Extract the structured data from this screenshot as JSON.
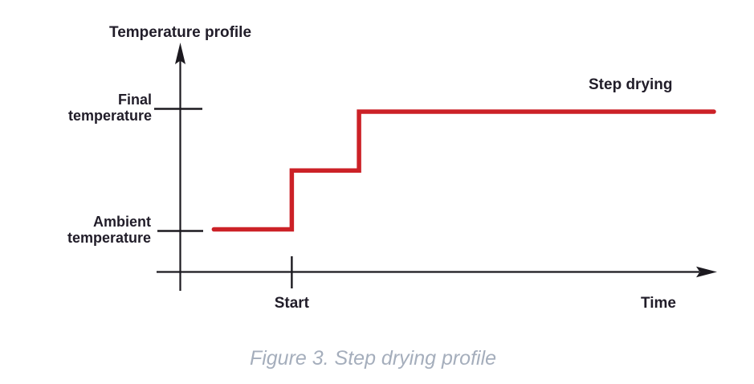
{
  "figure": {
    "title": "Temperature profile",
    "series_label": "Step drying",
    "y_axis_labels": {
      "final": [
        "Final",
        "temperature"
      ],
      "ambient": [
        "Ambient",
        "temperature"
      ]
    },
    "x_axis_labels": {
      "start": "Start",
      "time": "Time"
    },
    "caption": "Figure 3. Step drying profile"
  },
  "colors": {
    "line": "#cc2127",
    "axis": "#1b191f",
    "text": "#211d29",
    "caption": "#a5aebc"
  },
  "chart_data": {
    "type": "line",
    "subtype": "step",
    "title": "Temperature profile",
    "xlabel": "Time",
    "ylabel": "Temperature profile",
    "x_tick_labels": [
      "Start"
    ],
    "y_tick_labels": [
      "Ambient temperature",
      "Final temperature"
    ],
    "xlim": [
      0,
      10
    ],
    "ylim": [
      0,
      3.8
    ],
    "grid": false,
    "y_levels": {
      "ambient": 1,
      "intermediate": 2,
      "final": 3
    },
    "x_events": {
      "line_begin": 0.63,
      "start": 2.09,
      "second_step": 3.35,
      "end": 10
    },
    "series": [
      {
        "name": "Step drying",
        "color": "#cc2127",
        "points": [
          [
            0.63,
            1
          ],
          [
            2.09,
            1
          ],
          [
            2.09,
            2
          ],
          [
            3.35,
            2
          ],
          [
            3.35,
            3
          ],
          [
            10,
            3
          ]
        ]
      }
    ],
    "annotations": [
      {
        "text": "Step drying",
        "position": "above final-temperature segment, top right"
      }
    ],
    "caption": "Figure 3. Step drying profile",
    "legend_position": "none",
    "notes": "Temperature holds at ambient, steps to an intermediate level at Start, then steps to final temperature and holds until end of time axis."
  }
}
